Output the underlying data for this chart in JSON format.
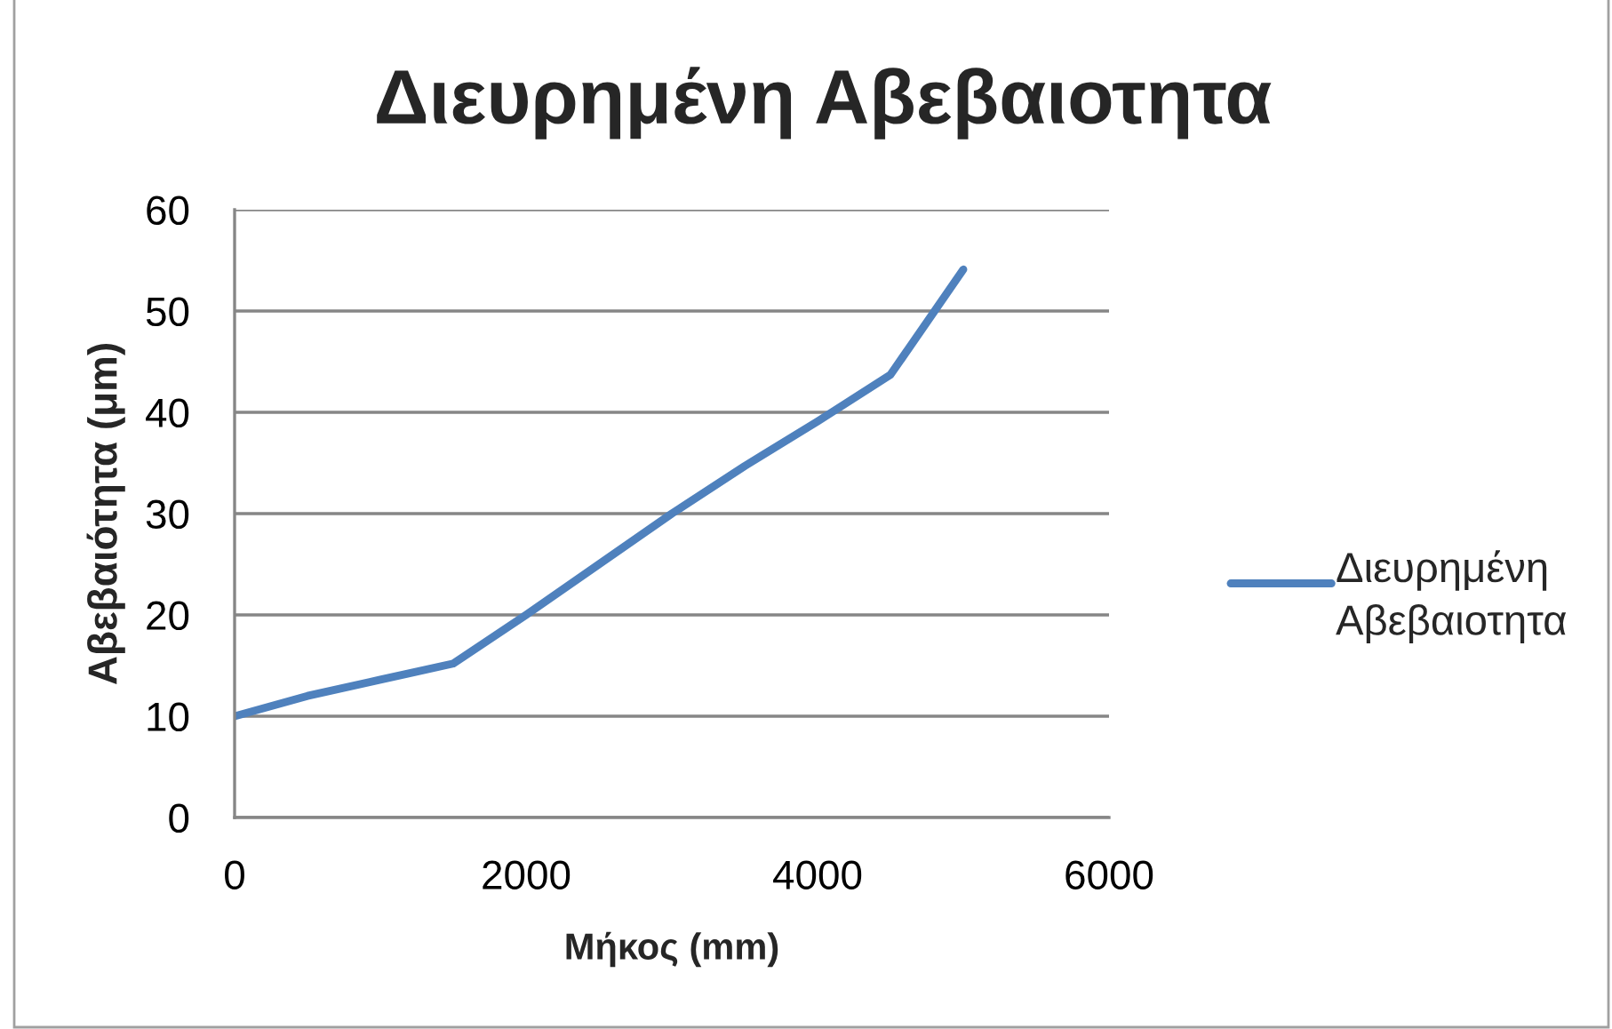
{
  "chart_data": {
    "type": "line",
    "title": "Διευρημένη Αβεβαιοτητα",
    "xlabel": "Μήκος (mm)",
    "ylabel": "Αβεβαιότητα (μm)",
    "x": [
      0,
      500,
      1000,
      1500,
      2000,
      2500,
      3000,
      3500,
      4000,
      4500,
      5000
    ],
    "series": [
      {
        "name": "Διευρημένη Αβεβαιοτητα",
        "color": "#4f81bd",
        "values": [
          10,
          12,
          13.6,
          15.2,
          20,
          25,
          30,
          34.7,
          39.1,
          43.7,
          54.1
        ]
      }
    ],
    "xlim": [
      0,
      6000
    ],
    "xticks": [
      0,
      2000,
      4000,
      6000
    ],
    "ylim": [
      0,
      60
    ],
    "yticks": [
      0,
      10,
      20,
      30,
      40,
      50,
      60
    ],
    "grid": "y",
    "legend": "right",
    "line_style": "solid"
  }
}
